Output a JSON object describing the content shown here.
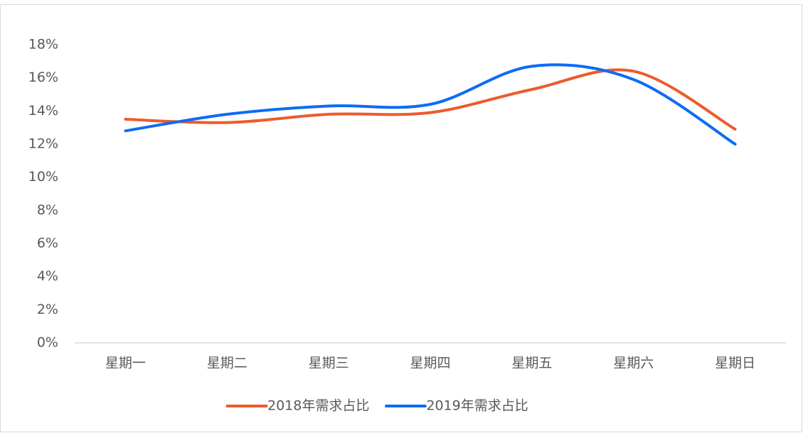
{
  "chart_data": {
    "type": "line",
    "categories": [
      "星期一",
      "星期二",
      "星期三",
      "星期四",
      "星期五",
      "星期六",
      "星期日"
    ],
    "series": [
      {
        "name": "2018年需求占比",
        "color": "#ed5b2d",
        "values": [
          13.5,
          13.3,
          13.8,
          13.9,
          15.3,
          16.4,
          12.9
        ]
      },
      {
        "name": "2019年需求占比",
        "color": "#0e6bf5",
        "values": [
          12.8,
          13.8,
          14.3,
          14.4,
          16.7,
          15.9,
          12.0
        ]
      }
    ],
    "ylim": [
      0,
      18
    ],
    "yticks": [
      {
        "value": 0,
        "label": "0%"
      },
      {
        "value": 2,
        "label": "2%"
      },
      {
        "value": 4,
        "label": "4%"
      },
      {
        "value": 6,
        "label": "6%"
      },
      {
        "value": 8,
        "label": "8%"
      },
      {
        "value": 10,
        "label": "10%"
      },
      {
        "value": 12,
        "label": "12%"
      },
      {
        "value": 14,
        "label": "14%"
      },
      {
        "value": 16,
        "label": "16%"
      },
      {
        "value": 18,
        "label": "18%"
      }
    ],
    "smooth": true,
    "legend": "bottom"
  }
}
